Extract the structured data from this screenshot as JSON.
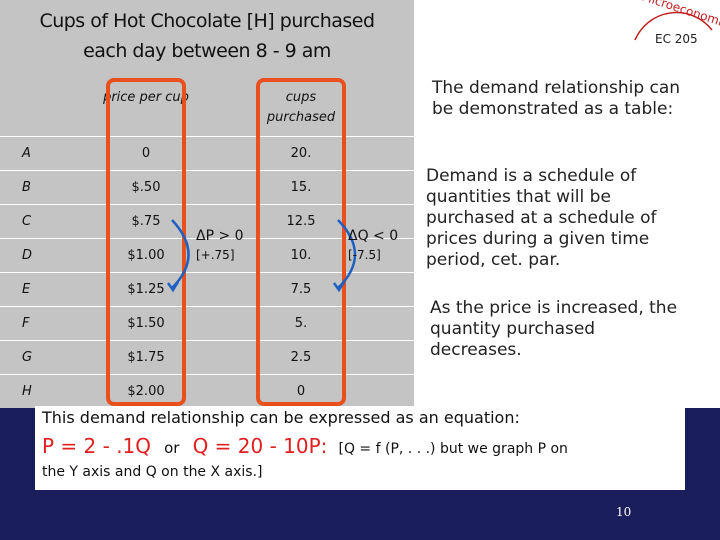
{
  "logo": {
    "name": "Microeconomics",
    "course": "EC 205"
  },
  "table": {
    "title": [
      "Cups of Hot Chocolate [H] purchased",
      "each day between 8 - 9 am"
    ],
    "headers": [
      "price per cup",
      "cups purchased"
    ],
    "rows": [
      [
        "A",
        "0",
        "20."
      ],
      [
        "B",
        "$.50",
        "15."
      ],
      [
        "C",
        "$.75",
        "12.5"
      ],
      [
        "D",
        "$1.00",
        "10."
      ],
      [
        "E",
        "$1.25",
        "7.5"
      ],
      [
        "F",
        "$1.50",
        "5."
      ],
      [
        "G",
        "$1.75",
        "2.5"
      ],
      [
        "H",
        "$2.00",
        "0"
      ]
    ],
    "price_change": [
      "ΔP > 0",
      "[+.75]"
    ],
    "quantity_change": [
      "ΔQ < 0",
      "[-7.5]"
    ]
  },
  "panel": {
    "intro": "The demand relationship can be demonstrated as a table:",
    "definition": "Demand is a schedule of quantities that will be purchased at a schedule of prices during a given time period, cet. par.",
    "observation": "As the price is increased, the quantity purchased decreases."
  },
  "footer": {
    "line1": "This demand relationship can be expressed as an equation:",
    "equation1": "P = 2 - .1Q",
    "or": "or",
    "equation2": "Q = 20 - 10P:",
    "note1": "[Q = f (P, . . .) but we graph P on",
    "note2": "the Y axis and Q on the X axis.]",
    "page": "10"
  }
}
